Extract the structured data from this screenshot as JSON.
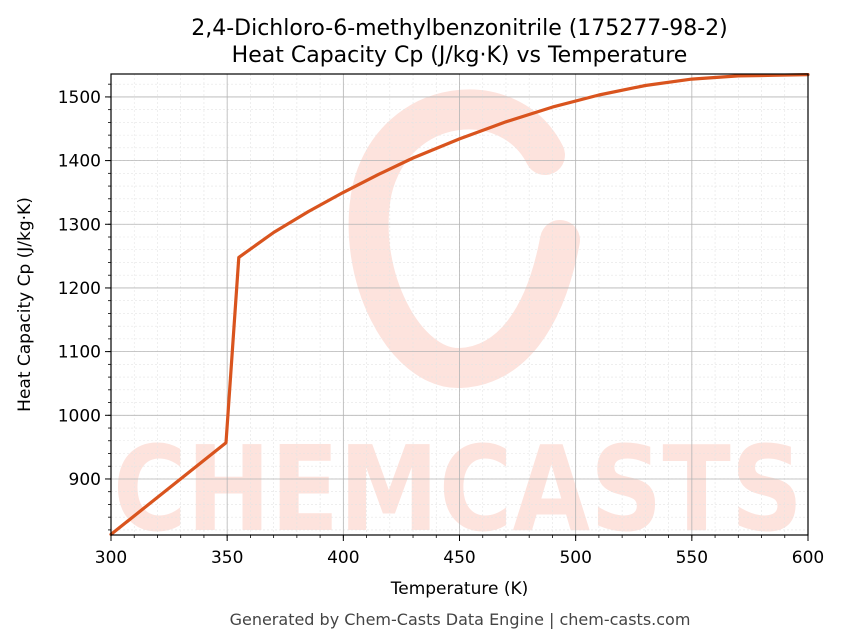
{
  "footer": "Generated by Chem-Casts Data Engine | chem-casts.com",
  "watermark": "CHEMCASTS",
  "chart_data": {
    "type": "line",
    "title": [
      "2,4-Dichloro-6-methylbenzonitrile (175277-98-2)",
      "Heat Capacity Cp (J/kg·K) vs Temperature"
    ],
    "xlabel": "Temperature (K)",
    "ylabel": "Heat Capacity Cp (J/kg·K)",
    "xlim": [
      300,
      600
    ],
    "ylim": [
      812,
      1536
    ],
    "xticks": [
      300,
      350,
      400,
      450,
      500,
      550,
      600
    ],
    "yticks": [
      900,
      1000,
      1100,
      1200,
      1300,
      1400,
      1500
    ],
    "grid": true,
    "color": "#d9541e",
    "watermark_color": "#fde3dd",
    "series": [
      {
        "x": [
          300,
          349.5,
          355,
          370,
          385,
          400,
          415,
          430,
          450,
          470,
          490,
          510,
          530,
          550,
          570,
          585,
          600
        ],
        "values": [
          813,
          957,
          1248,
          1287,
          1320,
          1350,
          1378,
          1404,
          1434,
          1461,
          1484,
          1503,
          1518,
          1528,
          1533,
          1534,
          1535
        ]
      }
    ]
  }
}
